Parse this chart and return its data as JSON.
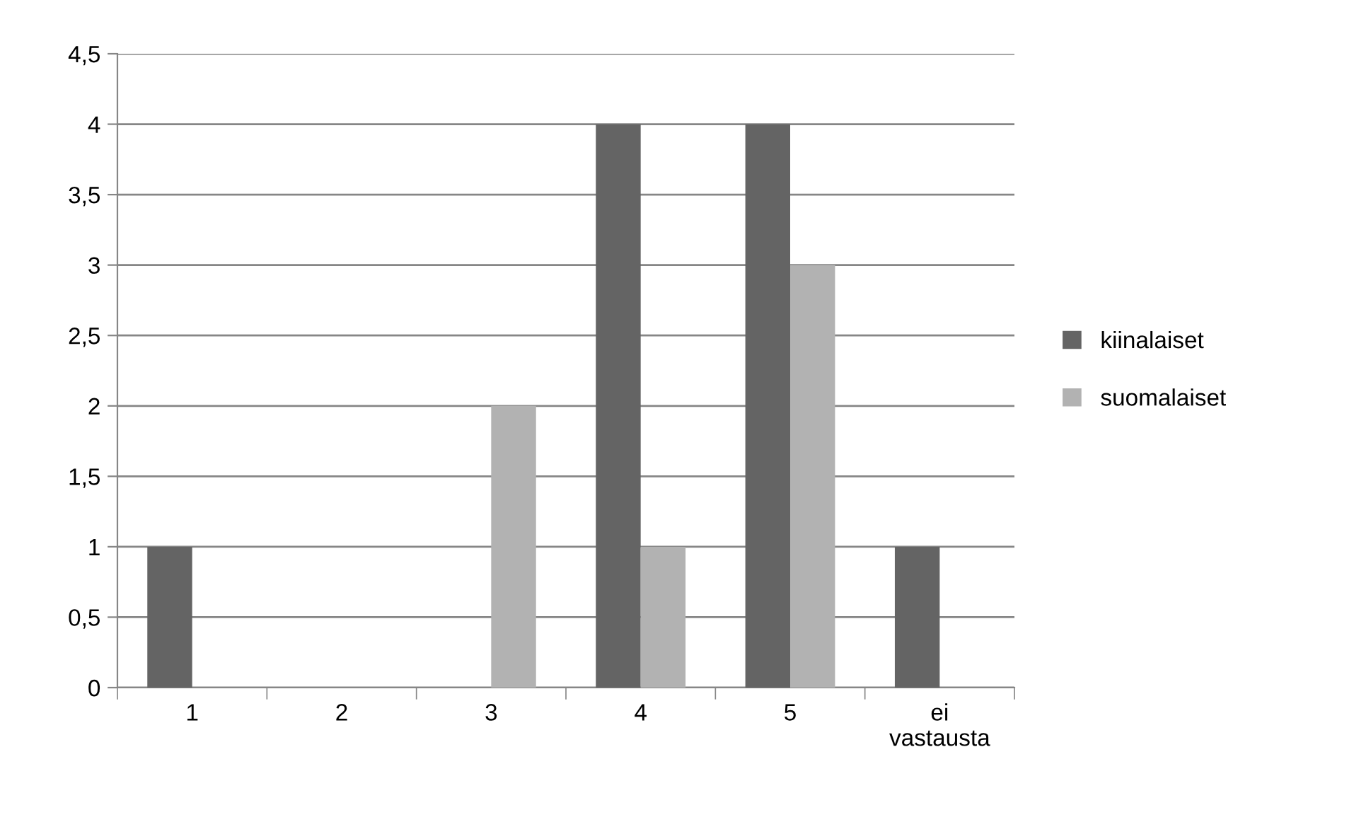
{
  "chart_data": {
    "type": "bar",
    "categories": [
      "1",
      "2",
      "3",
      "4",
      "5",
      "ei\nvastausta"
    ],
    "series": [
      {
        "name": "kiinalaiset",
        "color": "#646464",
        "values": [
          1,
          0,
          0,
          4,
          4,
          1
        ]
      },
      {
        "name": "suomalaiset",
        "color": "#b2b2b2",
        "values": [
          0,
          0,
          2,
          1,
          3,
          0
        ]
      }
    ],
    "ylim": [
      0,
      4.5
    ],
    "yticks": [
      0,
      {
        "value": 0.5,
        "label": "0,5"
      },
      1,
      {
        "value": 1.5,
        "label": "1,5"
      },
      2,
      {
        "value": 2.5,
        "label": "2,5"
      },
      3,
      {
        "value": 3.5,
        "label": "3,5"
      },
      4,
      {
        "value": 4.5,
        "label": "4,5"
      }
    ],
    "grid": "y",
    "legend": "right"
  }
}
